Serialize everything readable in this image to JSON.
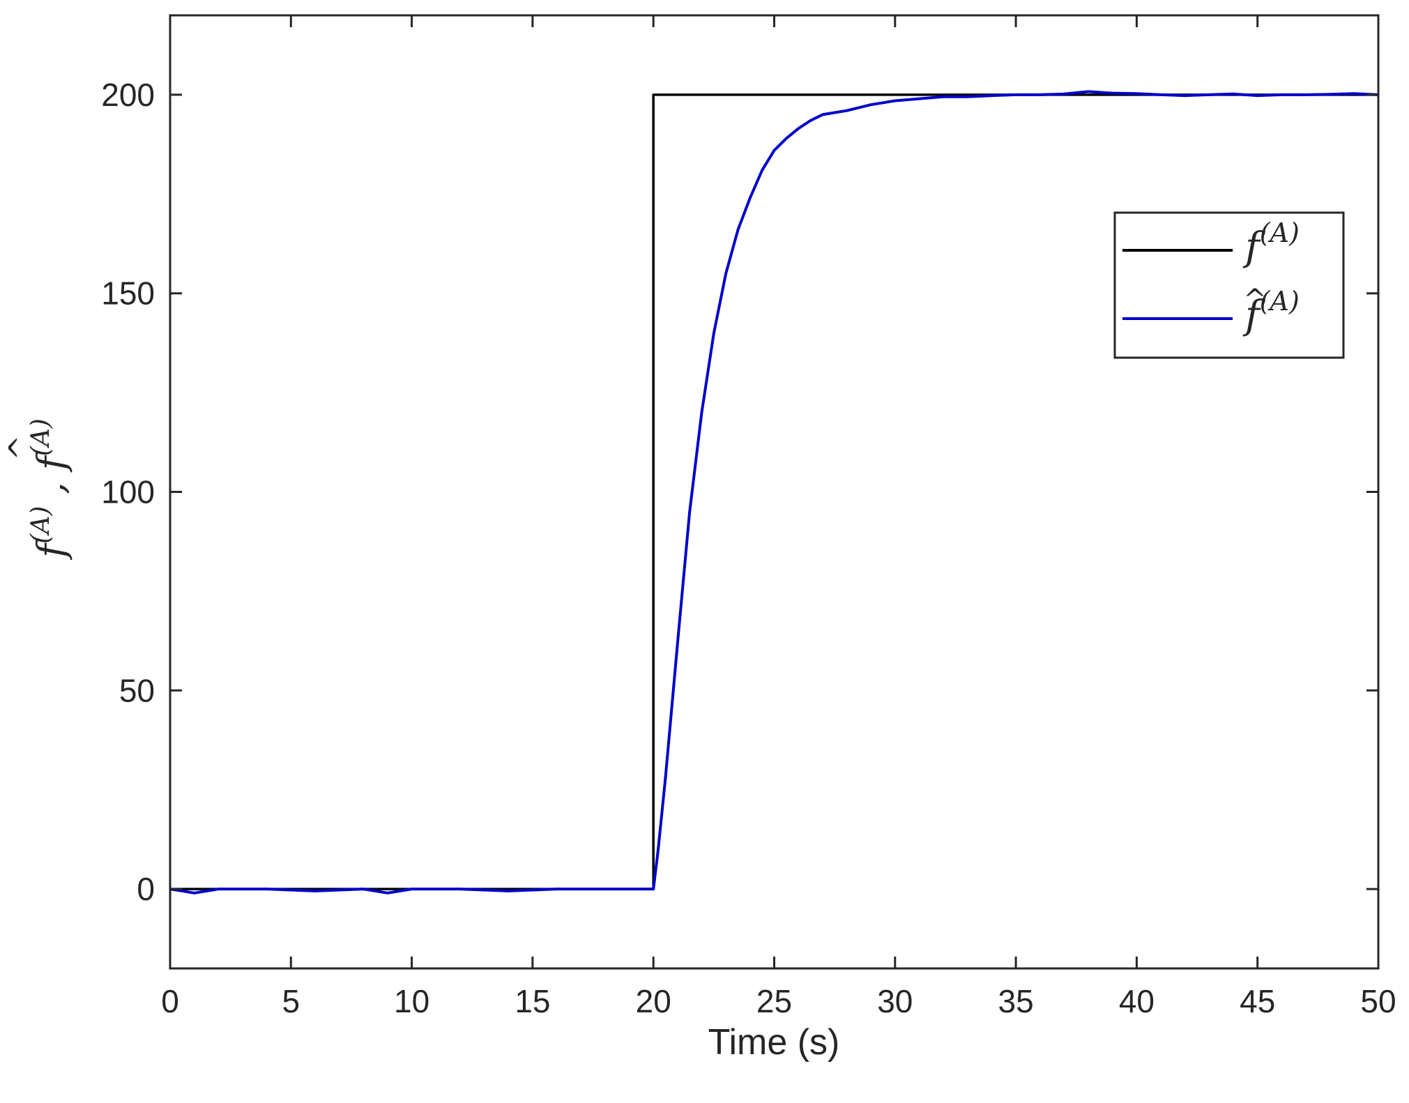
{
  "chart_data": {
    "type": "line",
    "title": "",
    "xlabel": "Time (s)",
    "ylabel_parts": {
      "f": "f",
      "sup": "(A)",
      "sep": " , "
    },
    "xlim": [
      0,
      50
    ],
    "ylim": [
      -20,
      220
    ],
    "xticks": [
      0,
      5,
      10,
      15,
      20,
      25,
      30,
      35,
      40,
      45,
      50
    ],
    "xtick_labels": [
      "0",
      "5",
      "10",
      "15",
      "20",
      "25",
      "30",
      "35",
      "40",
      "45",
      "50"
    ],
    "yticks": [
      0,
      50,
      100,
      150,
      200
    ],
    "ytick_labels": [
      "0",
      "50",
      "100",
      "150",
      "200"
    ],
    "grid": false,
    "legend_position": "top-right",
    "legend": [
      {
        "f": "f",
        "sup": "(A)",
        "hat": false
      },
      {
        "f": "f",
        "sup": "(A)",
        "hat": true
      }
    ],
    "series": [
      {
        "color": "#000000",
        "x": [
          0,
          20,
          20,
          50
        ],
        "y": [
          0,
          0,
          200,
          200
        ]
      },
      {
        "color": "#0000cc",
        "x": [
          0,
          1,
          2,
          4,
          6,
          8,
          9,
          10,
          12,
          14,
          16,
          18,
          20,
          20.2,
          20.5,
          21,
          21.5,
          22,
          22.5,
          23,
          23.5,
          24,
          24.5,
          25,
          25.5,
          26,
          26.5,
          27,
          27.5,
          28,
          29,
          30,
          31,
          32,
          33,
          34,
          35,
          36,
          37,
          38,
          39,
          40,
          41,
          42,
          43,
          44,
          45,
          46,
          47,
          48,
          49,
          50
        ],
        "y": [
          0,
          -1,
          0,
          0,
          -0.5,
          0,
          -1,
          0,
          0,
          -0.5,
          0,
          0,
          0,
          10,
          28,
          62,
          95,
          120,
          140,
          155,
          166,
          174,
          181,
          186,
          189,
          191.5,
          193.5,
          195,
          195.5,
          196,
          197.5,
          198.5,
          199,
          199.5,
          199.5,
          199.8,
          200,
          200,
          200.2,
          200.8,
          200.4,
          200.3,
          200,
          199.8,
          200,
          200.2,
          199.8,
          200,
          200,
          200.1,
          200.3,
          200
        ]
      }
    ]
  }
}
